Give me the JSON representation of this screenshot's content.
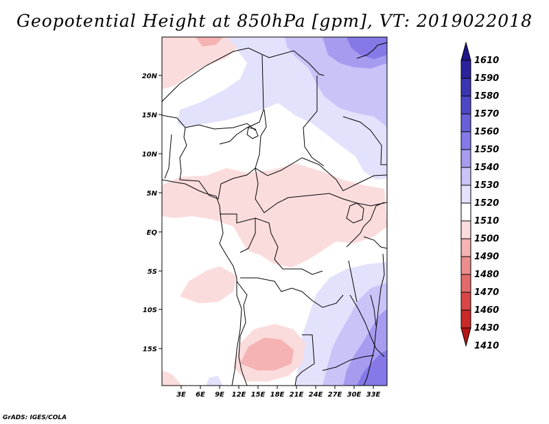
{
  "title": "Geopotential Height at 850hPa [gpm], VT: 2019022018",
  "footer": "GrADS: IGES/COLA",
  "map": {
    "lat_labels": [
      "20N",
      "15N",
      "10N",
      "5N",
      "EQ",
      "5S",
      "10S",
      "15S"
    ],
    "lon_labels": [
      "3E",
      "6E",
      "9E",
      "12E",
      "15E",
      "18E",
      "21E",
      "24E",
      "27E",
      "30E",
      "33E"
    ]
  },
  "colorbar": {
    "levels": [
      "1610",
      "1590",
      "1580",
      "1570",
      "1560",
      "1550",
      "1540",
      "1530",
      "1520",
      "1510",
      "1500",
      "1490",
      "1480",
      "1470",
      "1460",
      "1430",
      "1410"
    ],
    "colors": [
      "#1e1488",
      "#2b239c",
      "#3c35b2",
      "#4f48c6",
      "#6860d8",
      "#8479e6",
      "#a59cf0",
      "#c8c4f8",
      "#e2e2fc",
      "#ffffff",
      "#fbdcdc",
      "#f5b3b3",
      "#ec8d8d",
      "#e26a6a",
      "#d84646",
      "#c92929",
      "#b51616"
    ]
  }
}
